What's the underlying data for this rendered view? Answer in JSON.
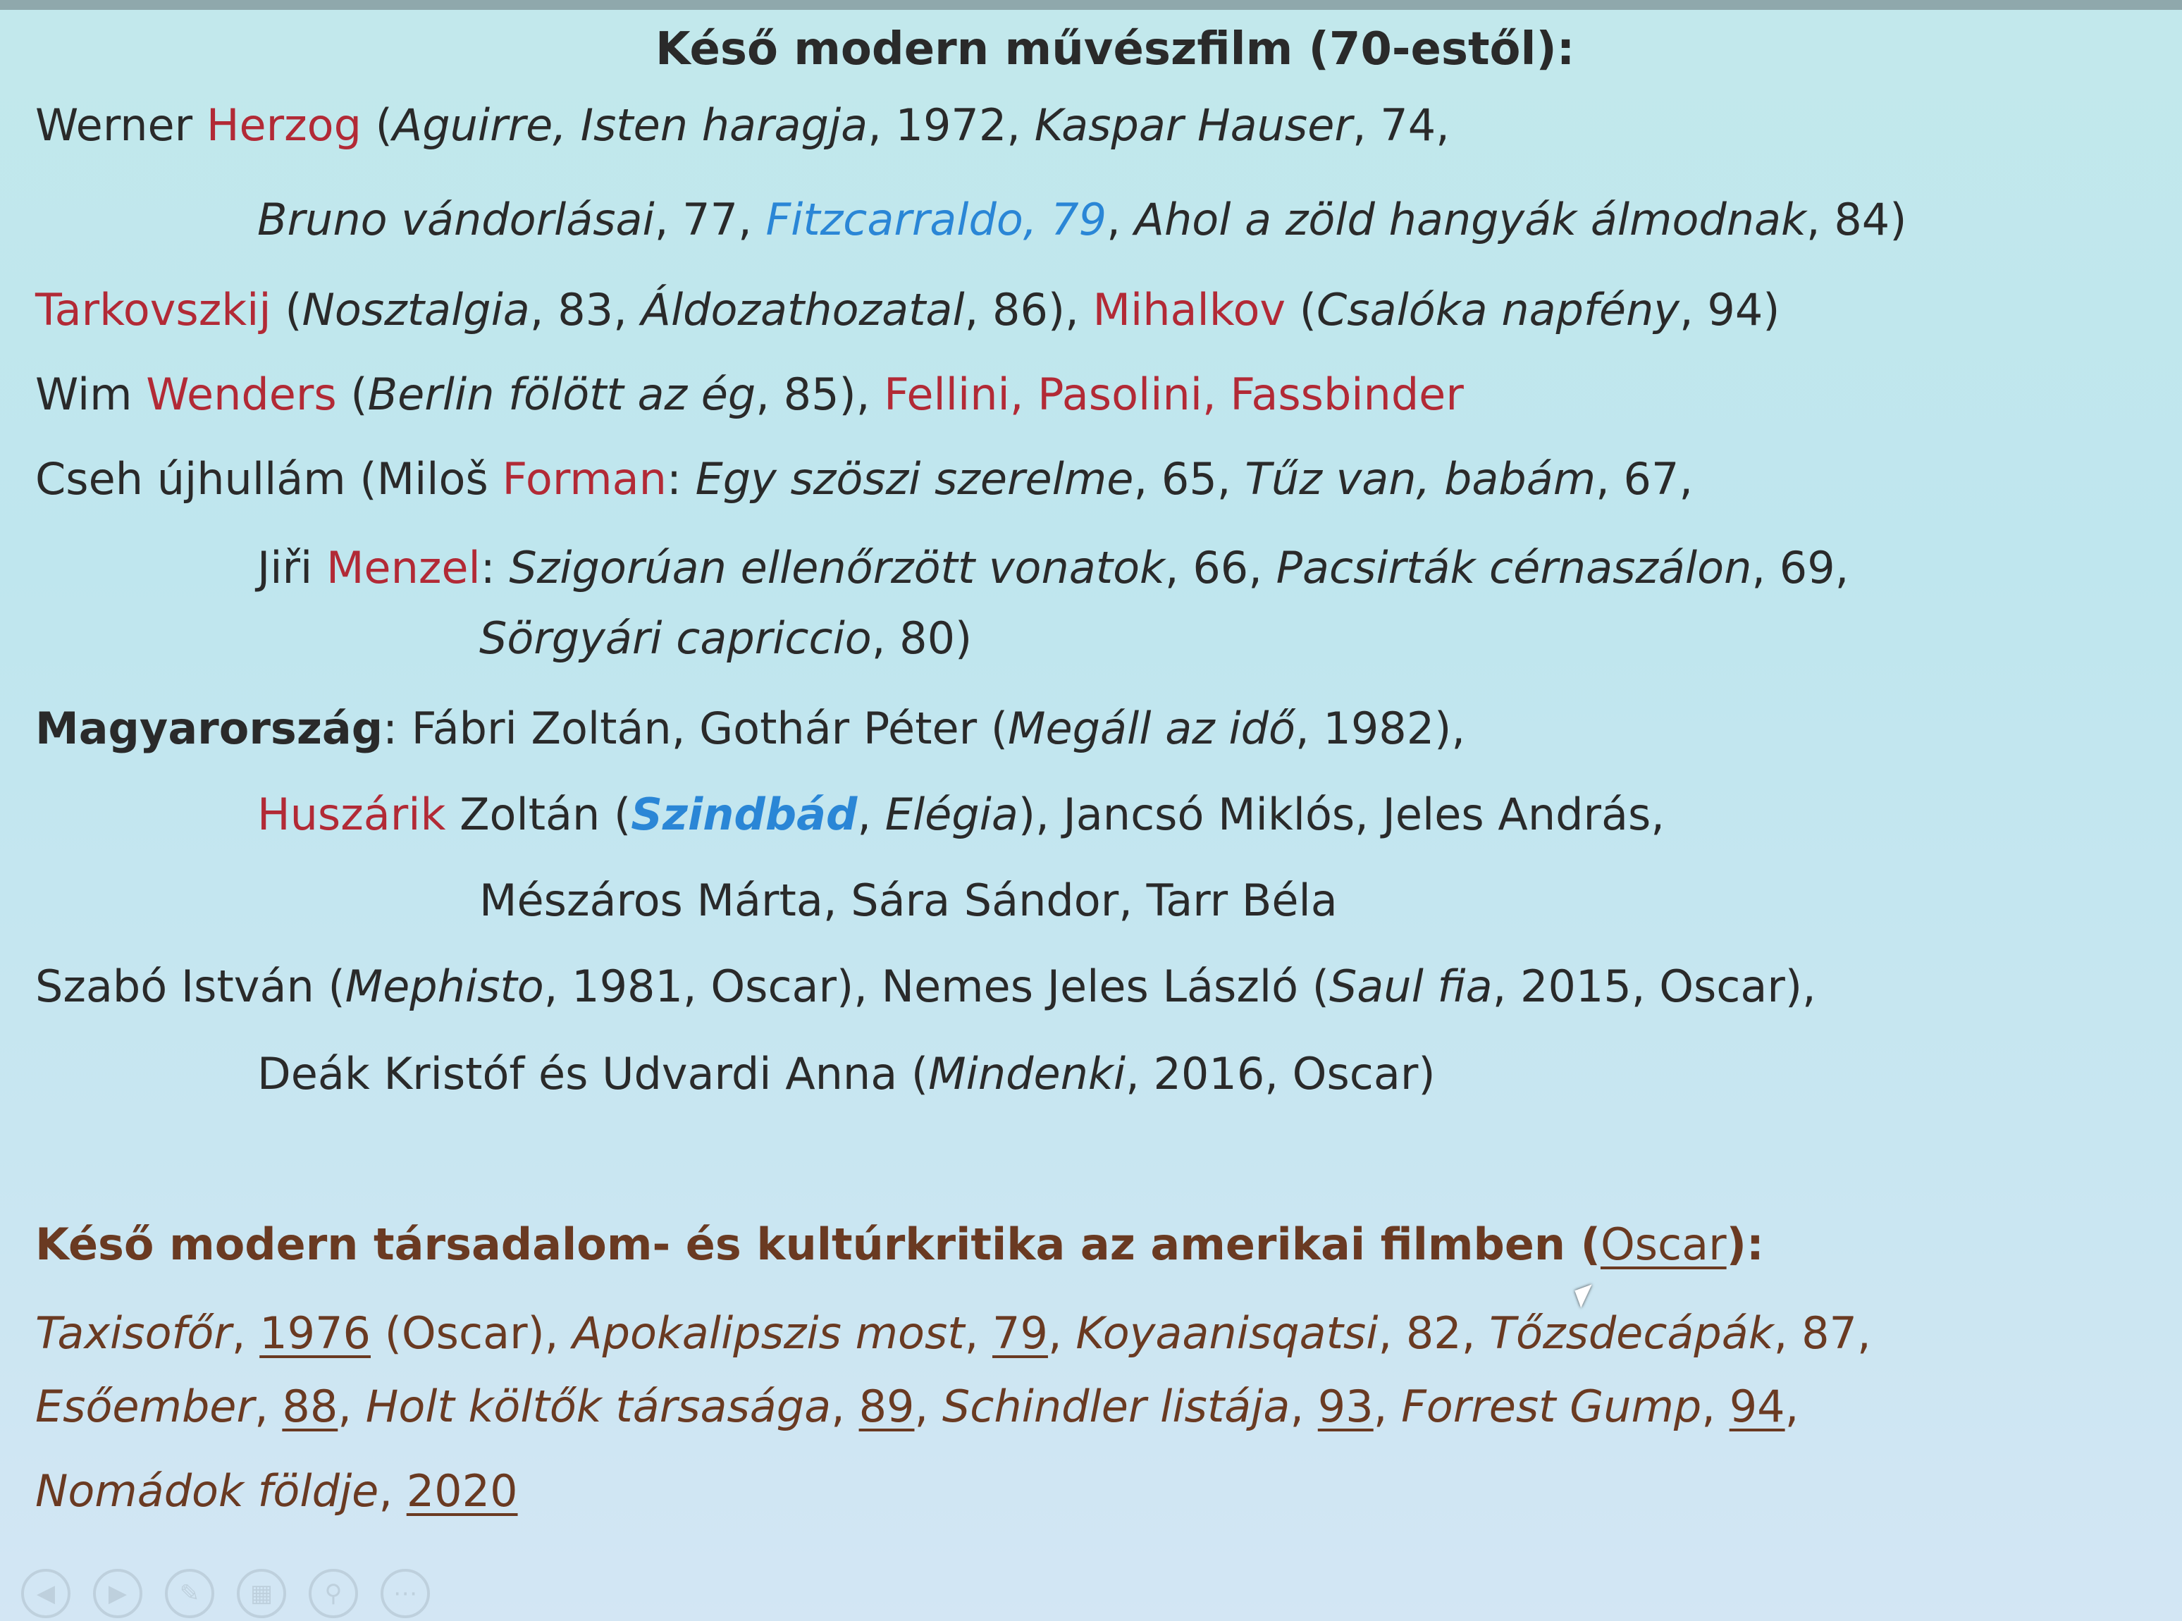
{
  "title": "Késő modern művészfilm (70-estől):",
  "lines": {
    "l1": {
      "a": "Werner ",
      "b": "Herzog",
      "c": " (",
      "d": "Aguirre, Isten haragja",
      "e": ", 1972, ",
      "f": "Kaspar Hauser",
      "g": ", 74,"
    },
    "l2": {
      "a": "Bruno vándorlásai",
      "b": ", 77, ",
      "c": "Fitzcarraldo, 79",
      "d": ", ",
      "e": "Ahol a zöld hangyák álmodnak",
      "f": ", 84)"
    },
    "l3": {
      "a": "Tarkovszkij",
      "b": " (",
      "c": "Nosztalgia",
      "d": ", 83, ",
      "e": "Áldozathozatal",
      "f": ", 86), ",
      "g": "Mihalkov",
      "h": " (",
      "i": "Csalóka napfény",
      "j": ", 94)"
    },
    "l4": {
      "a": "Wim ",
      "b": "Wenders",
      "c": " (",
      "d": "Berlin fölött az ég",
      "e": ", 85), ",
      "f": "Fellini, Pasolini, Fassbinder"
    },
    "l5": {
      "a": "Cseh újhullám (Miloš ",
      "b": "Forman",
      "c": ": ",
      "d": "Egy szöszi szerelme",
      "e": ", 65, ",
      "f": "Tűz van, babám",
      "g": ", 67,"
    },
    "l6": {
      "a": "Jiři ",
      "b": "Menzel",
      "c": ": ",
      "d": "Szigorúan ellenőrzött vonatok",
      "e": ", 66, ",
      "f": "Pacsirták cérnaszálon",
      "g": ", 69,"
    },
    "l7": {
      "a": "Sörgyári capriccio",
      "b": ", 80)"
    },
    "l8": {
      "a": "Magyarország",
      "b": ": Fábri Zoltán, Gothár Péter (",
      "c": "Megáll az idő",
      "d": ", 1982),"
    },
    "l9": {
      "a": "Huszárik",
      "b": " Zoltán (",
      "c": "Szindbád",
      "d": ", ",
      "e": "Elégia",
      "f": "), Jancsó Miklós, Jeles András,"
    },
    "l10": {
      "a": "Mészáros Márta, Sára Sándor, Tarr Béla"
    },
    "l11": {
      "a": "Szabó István (",
      "b": "Mephisto",
      "c": ", 1981, Oscar), Nemes Jeles László (",
      "d": "Saul fia",
      "e": ", 2015, Oscar),"
    },
    "l12": {
      "a": "Deák Kristóf és Udvardi Anna (",
      "b": "Mindenki",
      "c": ", 2016, Oscar)"
    }
  },
  "heading2": {
    "a": "Késő modern társadalom- és kultúrkritika az amerikai filmben",
    "b": " (",
    "c": "Oscar",
    "d": "):"
  },
  "lines2": {
    "m1": {
      "a": "Taxisofőr",
      "b": ", ",
      "c": "1976",
      "d": " (Oscar), ",
      "e": "Apokalipszis most",
      "f": ", ",
      "g": "79",
      "h": ", ",
      "i": "Koyaanisqatsi",
      "j": ", 82, ",
      "k": "Tőzsdecápák",
      "l": ", 87,"
    },
    "m2": {
      "a": "Esőember",
      "b": ", ",
      "c": "88",
      "d": ", ",
      "e": "Holt költők társasága",
      "f": ", ",
      "g": "89",
      "h": ", ",
      "i": "Schindler listája",
      "j": ", ",
      "k": "93",
      "l": ", ",
      "m": "Forrest Gump",
      "n": ", ",
      "o": "94",
      "p": ","
    },
    "m3": {
      "a": "Nomádok földje",
      "b": ", ",
      "c": "2020"
    }
  },
  "toolbar": [
    "previous-icon",
    "next-icon",
    "pen-icon",
    "slides-icon",
    "zoom-icon",
    "more-icon"
  ]
}
